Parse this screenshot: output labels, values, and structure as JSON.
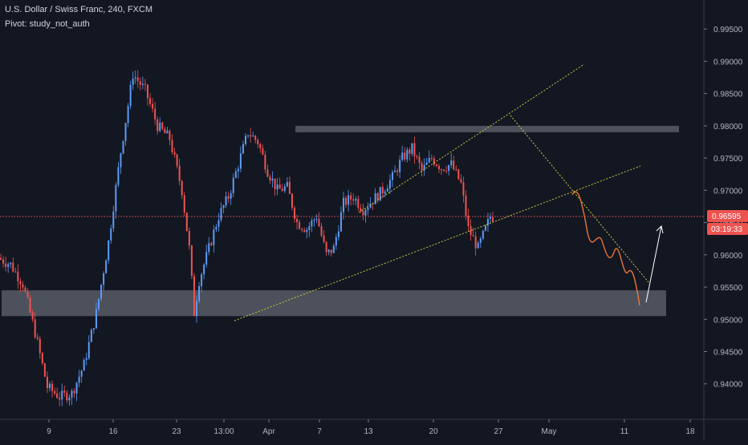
{
  "header": {
    "symbol_line": "U.S. Dollar / Swiss Franc, 240, FXCM",
    "indicator_line": "Pivot: study_not_auth"
  },
  "colors": {
    "background": "#131722",
    "up_candle": "#5b9cf6",
    "down_candle": "#ef5350",
    "axis_text": "#b2b5be",
    "trendline": "#c8c83c",
    "zone": "#9598a1",
    "price_line": "#ef5350",
    "projection": "#f57c3a",
    "arrow": "#ffffff"
  },
  "price_label": {
    "value": "0.96595",
    "countdown": "03:19:33"
  },
  "chart_data": {
    "type": "candlestick",
    "title": "U.S. Dollar / Swiss Franc, 240, FXCM",
    "ylim": [
      0.9345,
      0.9995
    ],
    "y_tick_labels": [
      "0.99500",
      "0.99000",
      "0.98500",
      "0.98000",
      "0.97500",
      "0.97000",
      "0.96500",
      "0.96000",
      "0.95500",
      "0.95000",
      "0.94500",
      "0.94000"
    ],
    "x_tick_labels": [
      "9",
      "16",
      "23",
      "13:00",
      "Apr",
      "7",
      "13",
      "20",
      "27",
      "May",
      "11",
      "18"
    ],
    "bar_count": 230,
    "price_path": [
      [
        0,
        0.9595
      ],
      [
        5,
        0.9585
      ],
      [
        10,
        0.9555
      ],
      [
        15,
        0.948
      ],
      [
        20,
        0.9395
      ],
      [
        25,
        0.938
      ],
      [
        30,
        0.9385
      ],
      [
        35,
        0.943
      ],
      [
        40,
        0.951
      ],
      [
        45,
        0.962
      ],
      [
        50,
        0.976
      ],
      [
        55,
        0.988
      ],
      [
        60,
        0.9855
      ],
      [
        65,
        0.98
      ],
      [
        70,
        0.978
      ],
      [
        75,
        0.97
      ],
      [
        78,
        0.961
      ],
      [
        80,
        0.951
      ],
      [
        82,
        0.956
      ],
      [
        86,
        0.961
      ],
      [
        90,
        0.966
      ],
      [
        94,
        0.969
      ],
      [
        98,
        0.974
      ],
      [
        102,
        0.979
      ],
      [
        106,
        0.9775
      ],
      [
        110,
        0.973
      ],
      [
        114,
        0.97
      ],
      [
        118,
        0.9705
      ],
      [
        122,
        0.965
      ],
      [
        126,
        0.964
      ],
      [
        130,
        0.966
      ],
      [
        134,
        0.96
      ],
      [
        137,
        0.961
      ],
      [
        141,
        0.968
      ],
      [
        145,
        0.969
      ],
      [
        149,
        0.967
      ],
      [
        153,
        0.9685
      ],
      [
        157,
        0.97
      ],
      [
        161,
        0.972
      ],
      [
        165,
        0.975
      ],
      [
        169,
        0.9765
      ],
      [
        173,
        0.973
      ],
      [
        177,
        0.975
      ],
      [
        181,
        0.9735
      ],
      [
        185,
        0.974
      ],
      [
        189,
        0.971
      ],
      [
        192,
        0.964
      ],
      [
        196,
        0.961
      ],
      [
        199,
        0.964
      ],
      [
        201,
        0.9659
      ]
    ],
    "zones": [
      {
        "name": "resistance",
        "from": 0.979,
        "to": 0.98
      },
      {
        "name": "support",
        "from": 0.9505,
        "to": 0.9545
      }
    ],
    "current_price": 0.96595,
    "grid": false
  }
}
